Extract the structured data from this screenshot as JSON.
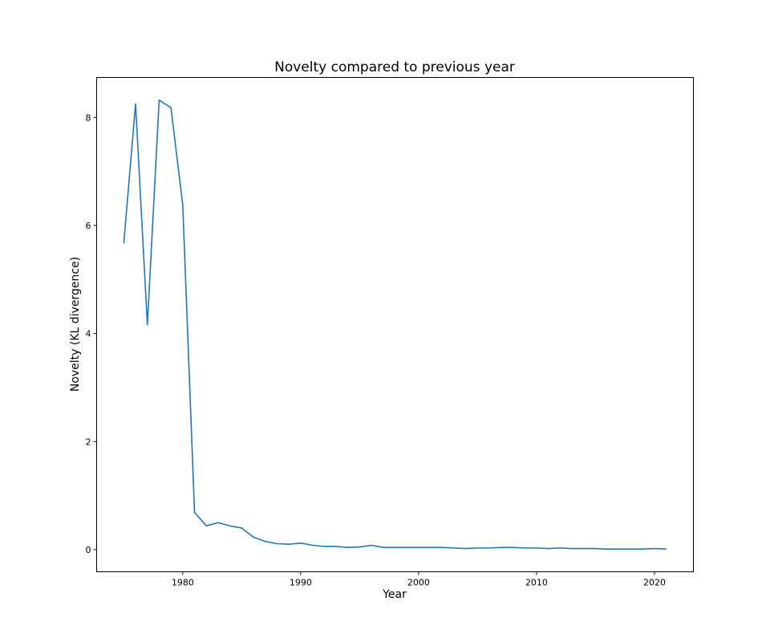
{
  "chart_data": {
    "type": "line",
    "title": "Novelty compared to previous year",
    "xlabel": "Year",
    "ylabel": "Novelty (KL divergence)",
    "xlim": [
      1972.7,
      2023.3
    ],
    "ylim": [
      -0.41,
      8.74
    ],
    "xticks": [
      1980,
      1990,
      2000,
      2010,
      2020
    ],
    "yticks": [
      0,
      2,
      4,
      6,
      8
    ],
    "grid": false,
    "series": [
      {
        "color": "#1f77b4",
        "x": [
          1975,
          1976,
          1977,
          1978,
          1979,
          1980,
          1981,
          1982,
          1983,
          1984,
          1985,
          1986,
          1987,
          1988,
          1989,
          1990,
          1991,
          1992,
          1993,
          1994,
          1995,
          1996,
          1997,
          1998,
          1999,
          2000,
          2001,
          2002,
          2003,
          2004,
          2005,
          2006,
          2007,
          2008,
          2009,
          2010,
          2011,
          2012,
          2013,
          2014,
          2015,
          2016,
          2017,
          2018,
          2019,
          2020,
          2021
        ],
        "y": [
          5.67,
          8.25,
          4.16,
          8.32,
          8.18,
          6.38,
          0.69,
          0.44,
          0.5,
          0.44,
          0.4,
          0.23,
          0.15,
          0.11,
          0.1,
          0.12,
          0.08,
          0.06,
          0.06,
          0.04,
          0.05,
          0.08,
          0.04,
          0.04,
          0.04,
          0.04,
          0.04,
          0.04,
          0.03,
          0.02,
          0.03,
          0.03,
          0.04,
          0.04,
          0.03,
          0.03,
          0.02,
          0.03,
          0.02,
          0.02,
          0.02,
          0.01,
          0.01,
          0.01,
          0.01,
          0.02,
          0.01
        ]
      }
    ]
  }
}
